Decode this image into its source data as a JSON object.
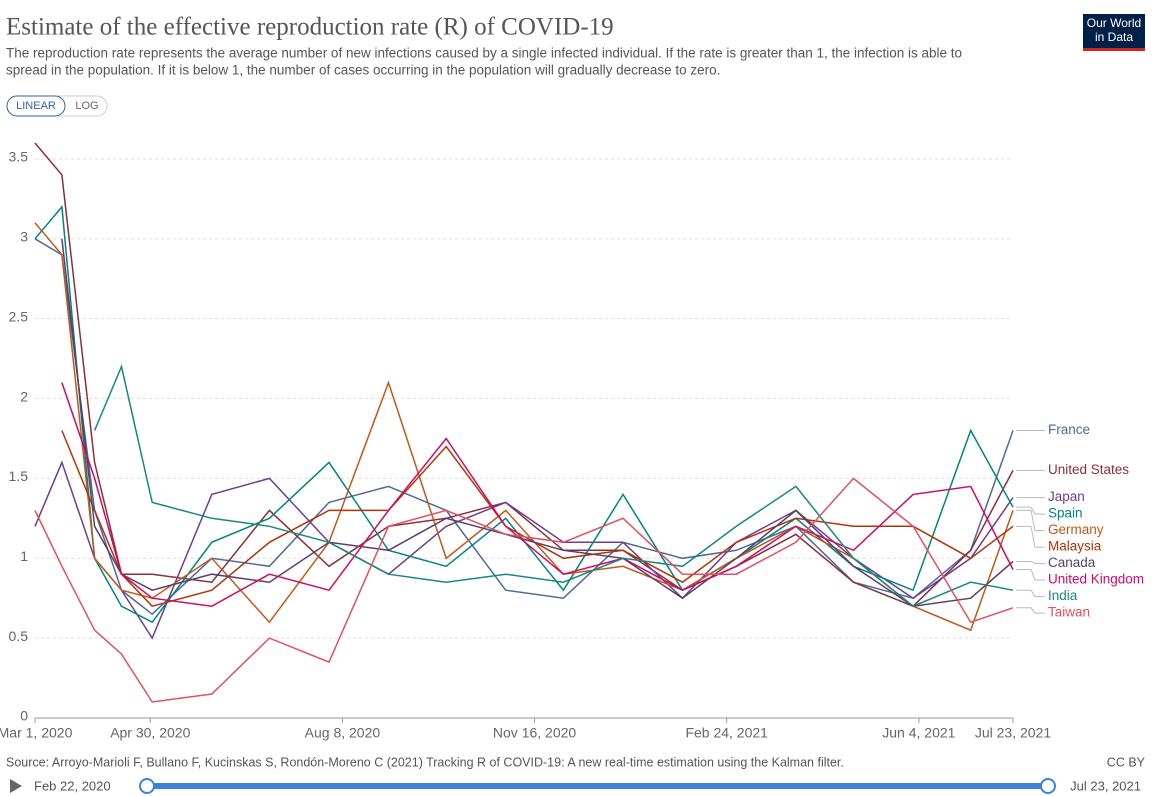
{
  "chart_data": {
    "type": "line",
    "title": "Estimate of the effective reproduction rate (R) of COVID-19",
    "subtitle": [
      "The reproduction rate represents the average number of new infections caused by a single infected individual. If the rate is greater than 1, the infection is able to",
      "spread in the population. If it is below 1, the number of cases occurring in the population will gradually decrease to zero."
    ],
    "logo": [
      "Our World",
      "in Data"
    ],
    "buttons": [
      "LINEAR",
      "LOG"
    ],
    "source": "Source: Arroyo-Marioli F, Bullano F, Kucinskas S, Rondón-Moreno C (2021) Tracking R of COVID-19: A new real-time estimation using the Kalman filter.",
    "license": "CC BY",
    "timeline": [
      "Feb 22, 2020",
      "Jul 23, 2021"
    ],
    "x": [
      "Mar 1, 2020",
      "Mar 15, 2020",
      "Apr 1, 2020",
      "Apr 15, 2020",
      "May 1, 2020",
      "Jun 1, 2020",
      "Jul 1, 2020",
      "Aug 1, 2020",
      "Sep 1, 2020",
      "Oct 1, 2020",
      "Nov 1, 2020",
      "Dec 1, 2020",
      "Jan 1, 2021",
      "Feb 1, 2021",
      "Mar 1, 2021",
      "Apr 1, 2021",
      "May 1, 2021",
      "Jun 1, 2021",
      "Jul 1, 2021",
      "Jul 23, 2021"
    ],
    "xlim": [
      "Mar 1, 2020",
      "Jul 23, 2021"
    ],
    "xticks": [
      "Mar 1, 2020",
      "Apr 30, 2020",
      "Aug 8, 2020",
      "Nov 16, 2020",
      "Feb 24, 2021",
      "Jun 4, 2021",
      "Jul 23, 2021"
    ],
    "ylim": [
      0,
      3.65
    ],
    "yticks": [
      0,
      0.5,
      1,
      1.5,
      2,
      2.5,
      3,
      3.5
    ],
    "grid": true,
    "series": [
      {
        "name": "France",
        "color": "#4c6a9c",
        "values": [
          3.0,
          2.9,
          1.3,
          0.8,
          0.65,
          1.0,
          0.95,
          1.35,
          1.45,
          1.3,
          0.8,
          0.75,
          1.1,
          1.0,
          1.05,
          1.2,
          0.85,
          0.75,
          1.05,
          1.8
        ]
      },
      {
        "name": "United States",
        "color": "#883039",
        "values": [
          3.6,
          3.4,
          1.6,
          0.9,
          0.9,
          0.85,
          1.3,
          0.95,
          1.2,
          1.25,
          1.35,
          1.05,
          1.05,
          0.8,
          0.95,
          1.15,
          0.85,
          0.7,
          1.05,
          1.55
        ]
      },
      {
        "name": "Japan",
        "color": "#6d3e91",
        "values": [
          1.2,
          1.6,
          1.0,
          0.8,
          0.5,
          1.4,
          1.5,
          1.1,
          0.9,
          1.2,
          1.35,
          1.1,
          1.1,
          0.75,
          1.1,
          1.3,
          1.0,
          0.75,
          1.0,
          1.38
        ]
      },
      {
        "name": "Spain",
        "color": "#00847e",
        "values": [
          3.0,
          3.2,
          1.0,
          0.7,
          0.6,
          1.1,
          1.25,
          1.6,
          1.05,
          0.95,
          1.25,
          0.8,
          1.4,
          0.8,
          1.0,
          1.25,
          0.95,
          0.8,
          1.8,
          1.32
        ]
      },
      {
        "name": "Germany",
        "color": "#c05917",
        "values": [
          3.1,
          2.9,
          1.0,
          0.8,
          0.75,
          1.0,
          0.6,
          1.1,
          2.1,
          1.0,
          1.3,
          0.9,
          0.95,
          0.8,
          1.0,
          1.2,
          1.0,
          0.7,
          0.55,
          1.3
        ]
      },
      {
        "name": "Malaysia",
        "color": "#b13507",
        "values": [
          null,
          1.8,
          1.3,
          0.9,
          0.7,
          0.8,
          1.1,
          1.3,
          1.3,
          1.7,
          1.2,
          1.0,
          1.05,
          0.85,
          1.1,
          1.25,
          1.2,
          1.2,
          1.0,
          1.2
        ]
      },
      {
        "name": "Canada",
        "color": "#5b3e69",
        "values": [
          null,
          3.0,
          1.2,
          0.9,
          0.8,
          0.9,
          0.85,
          1.1,
          1.05,
          1.25,
          1.15,
          1.05,
          1.0,
          0.75,
          1.0,
          1.3,
          0.95,
          0.7,
          0.75,
          0.98
        ]
      },
      {
        "name": "United Kingdom",
        "color": "#cf0a66",
        "values": [
          null,
          2.1,
          1.5,
          0.9,
          0.75,
          0.7,
          0.9,
          0.8,
          1.3,
          1.75,
          1.2,
          0.9,
          1.0,
          0.8,
          0.95,
          1.2,
          1.05,
          1.4,
          1.45,
          0.93
        ]
      },
      {
        "name": "India",
        "color": "#18877e",
        "values": [
          null,
          null,
          1.8,
          2.2,
          1.35,
          1.25,
          1.2,
          1.1,
          0.9,
          0.85,
          0.9,
          0.85,
          1.0,
          0.95,
          1.2,
          1.45,
          1.0,
          0.7,
          0.85,
          0.8
        ]
      },
      {
        "name": "Taiwan",
        "color": "#e0515f",
        "values": [
          1.3,
          0.95,
          0.55,
          0.4,
          0.1,
          0.15,
          0.5,
          0.35,
          1.2,
          1.3,
          1.15,
          1.1,
          1.25,
          0.9,
          0.9,
          1.1,
          1.5,
          1.2,
          0.6,
          0.69
        ]
      }
    ]
  }
}
